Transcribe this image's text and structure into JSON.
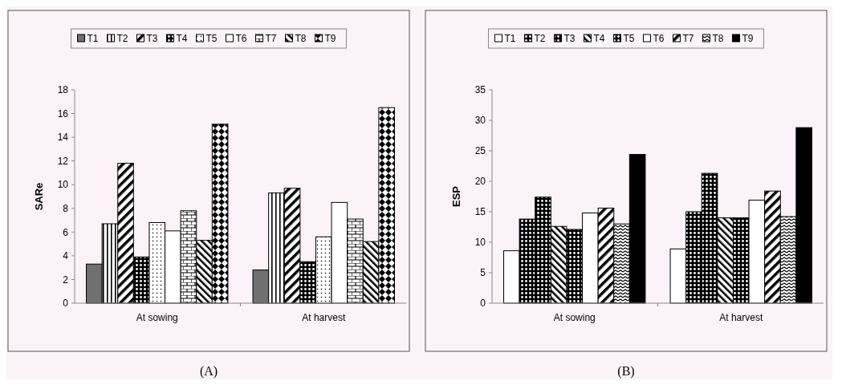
{
  "chart_data": [
    {
      "type": "bar",
      "ylabel": "SARe",
      "categories": [
        "At sowing",
        "At harvest"
      ],
      "ylim": [
        0,
        18
      ],
      "yticks": [
        0,
        2,
        4,
        6,
        8,
        10,
        12,
        14,
        16,
        18
      ],
      "legend": "top",
      "annotations": [
        "(A)"
      ],
      "series": [
        {
          "name": "T1",
          "color": "#707070",
          "values": [
            3.3,
            2.8
          ]
        },
        {
          "name": "T2",
          "color": "#000000",
          "values": [
            6.7,
            9.3
          ]
        },
        {
          "name": "T3",
          "color": "#000000",
          "values": [
            11.8,
            9.7
          ]
        },
        {
          "name": "T4",
          "color": "#000000",
          "values": [
            3.9,
            3.5
          ]
        },
        {
          "name": "T5",
          "color": "#000000",
          "values": [
            6.8,
            5.6
          ]
        },
        {
          "name": "T6",
          "color": "#ffffff",
          "values": [
            6.1,
            8.5
          ]
        },
        {
          "name": "T7",
          "color": "#000000",
          "values": [
            7.8,
            7.1
          ]
        },
        {
          "name": "T8",
          "color": "#000000",
          "values": [
            5.3,
            5.2
          ]
        },
        {
          "name": "T9",
          "color": "#000000",
          "values": [
            15.1,
            16.5
          ]
        }
      ]
    },
    {
      "type": "bar",
      "ylabel": "ESP",
      "categories": [
        "At sowing",
        "At harvest"
      ],
      "ylim": [
        0,
        35
      ],
      "yticks": [
        0,
        5,
        10,
        15,
        20,
        25,
        30,
        35
      ],
      "legend": "top",
      "annotations": [
        "(B)"
      ],
      "series": [
        {
          "name": "T1",
          "color": "#ffffff",
          "values": [
            8.6,
            8.9
          ]
        },
        {
          "name": "T2",
          "color": "#000000",
          "values": [
            13.8,
            15.0
          ]
        },
        {
          "name": "T3",
          "color": "#000000",
          "values": [
            17.4,
            21.3
          ]
        },
        {
          "name": "T4",
          "color": "#000000",
          "values": [
            12.6,
            14.0
          ]
        },
        {
          "name": "T5",
          "color": "#000000",
          "values": [
            12.1,
            14.0
          ]
        },
        {
          "name": "T6",
          "color": "#ffffff",
          "values": [
            14.8,
            16.9
          ]
        },
        {
          "name": "T7",
          "color": "#000000",
          "values": [
            15.6,
            18.4
          ]
        },
        {
          "name": "T8",
          "color": "#000000",
          "values": [
            13.0,
            14.2
          ]
        },
        {
          "name": "T9",
          "color": "#000000",
          "values": [
            24.4,
            28.8
          ]
        }
      ]
    }
  ]
}
